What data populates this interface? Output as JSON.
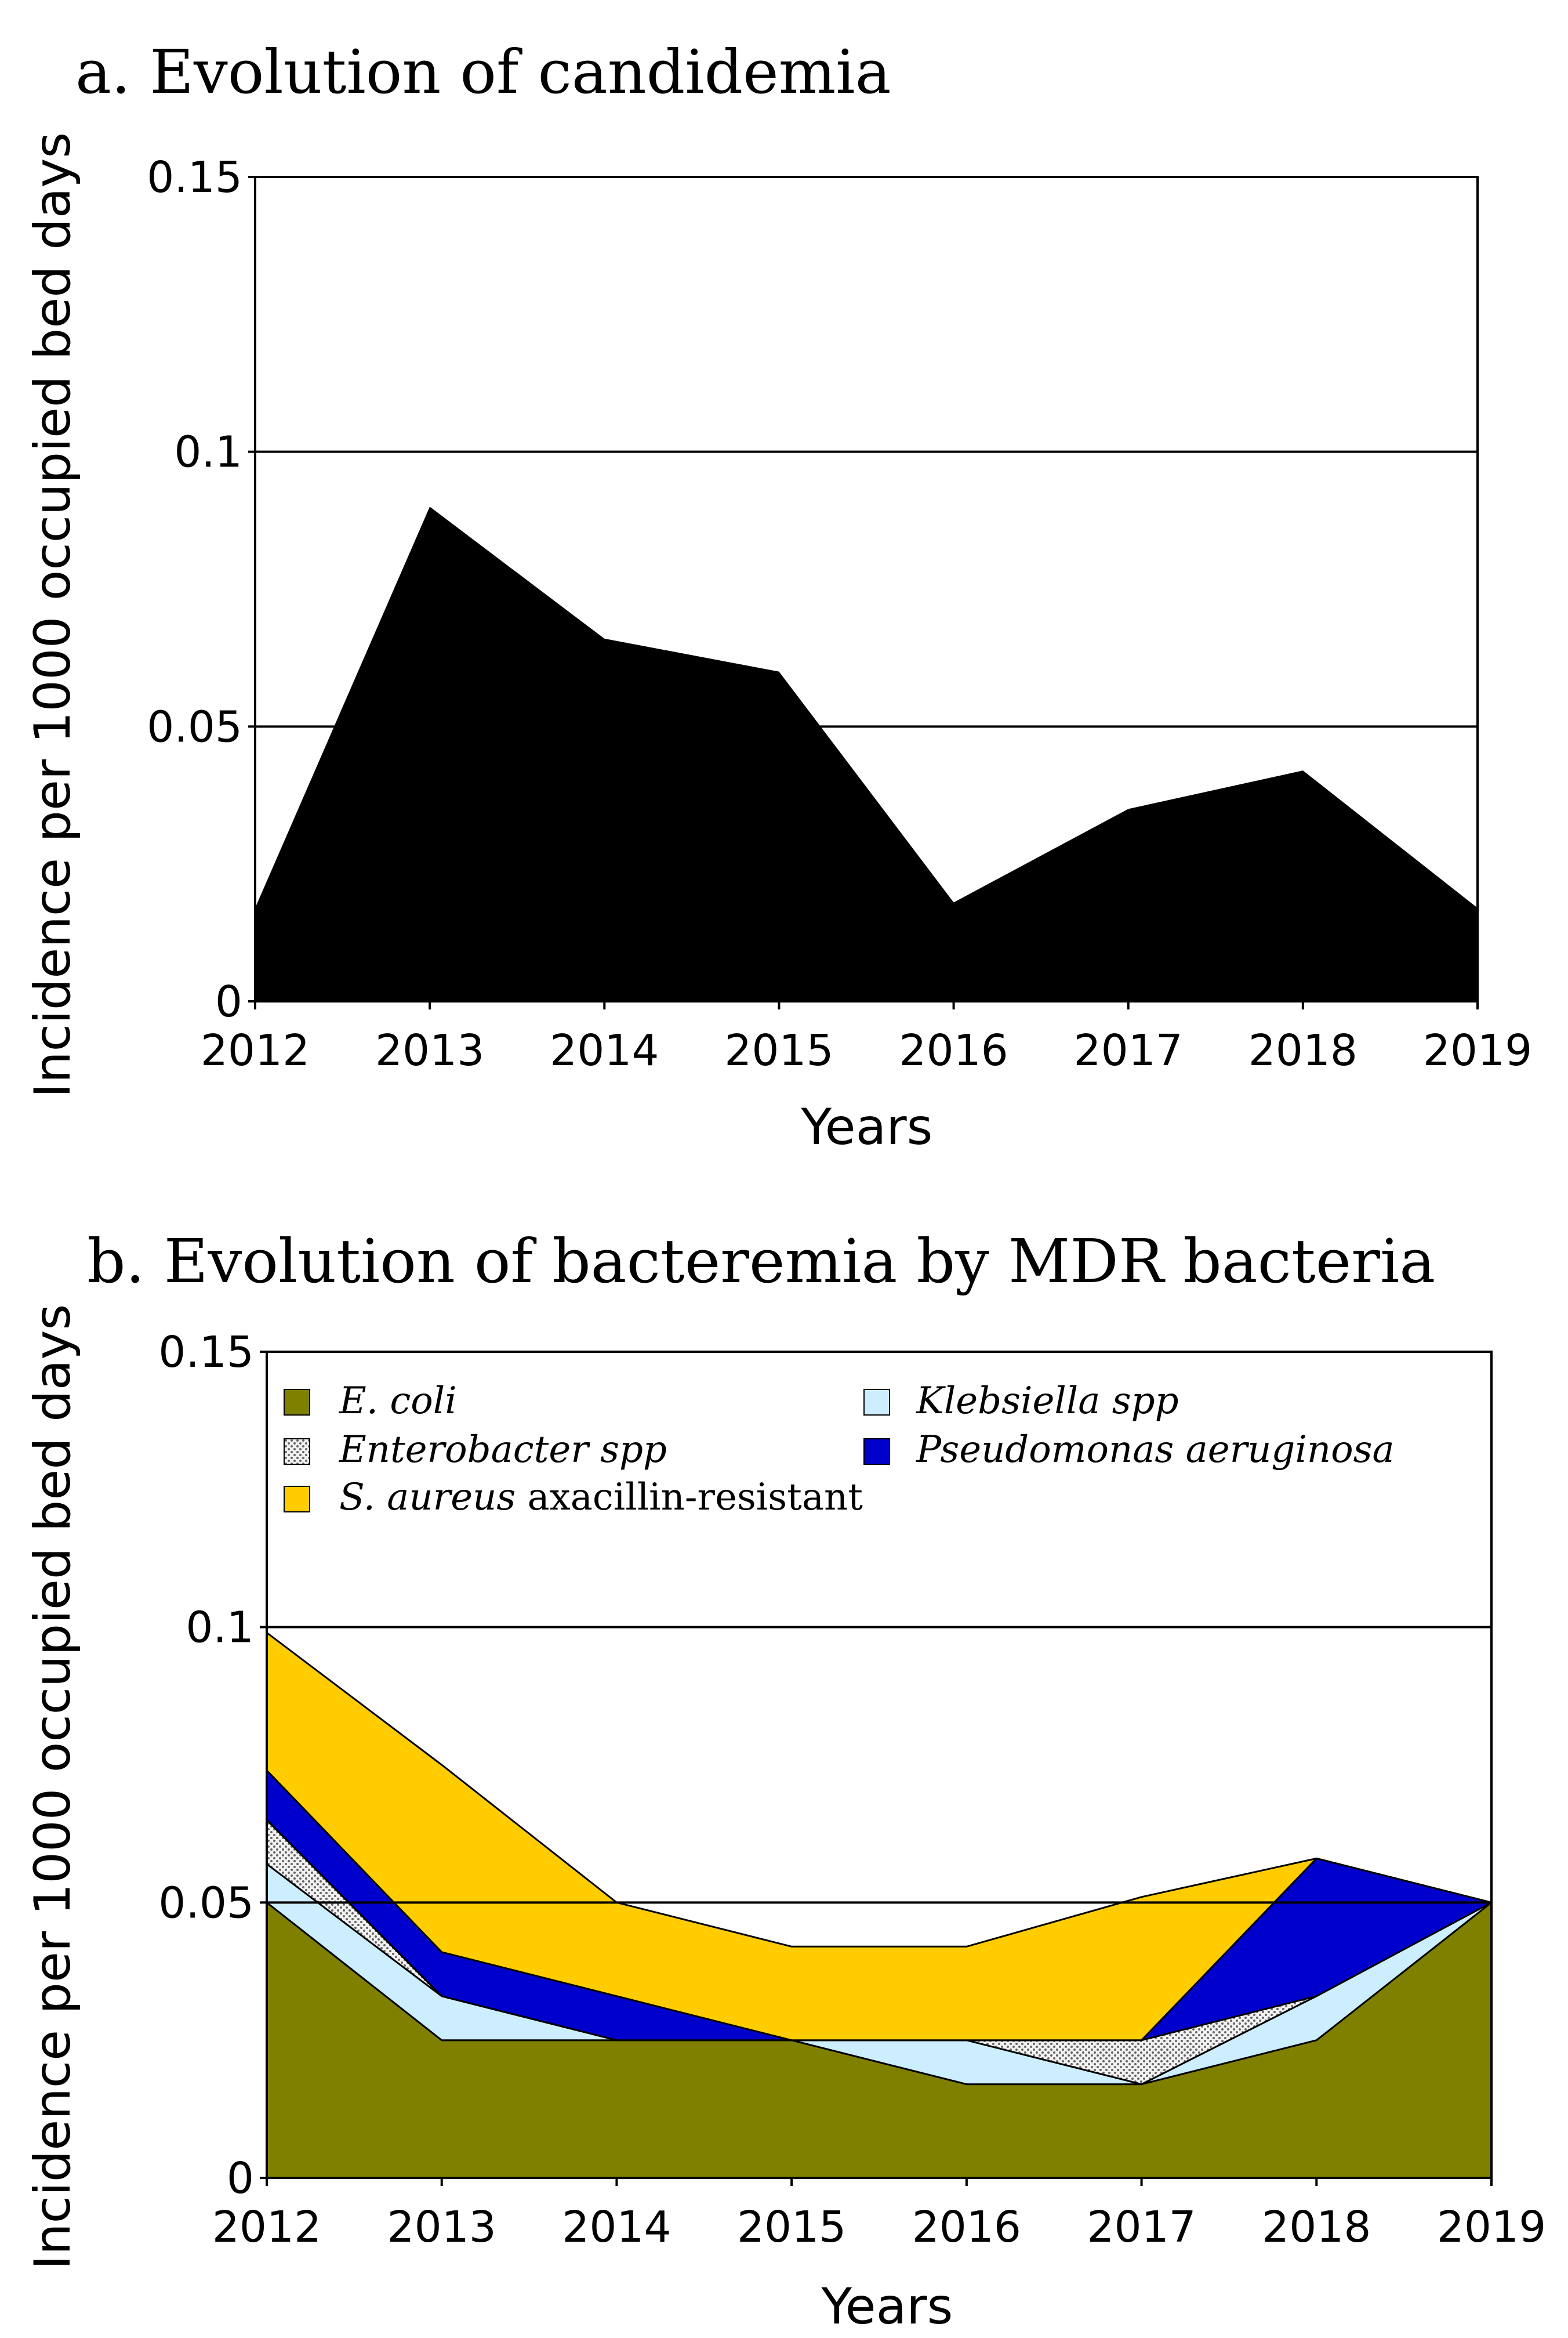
{
  "chart_data": [
    {
      "type": "area",
      "title": "a. Evolution of candidemia",
      "xlabel": "Years",
      "ylabel": "Incidence per 1000 occupied bed days",
      "categories": [
        "2012",
        "2013",
        "2014",
        "2015",
        "2016",
        "2017",
        "2018",
        "2019"
      ],
      "ylim": [
        0,
        0.15
      ],
      "yticks": [
        "0",
        "0.05",
        "0.1",
        "0.15"
      ],
      "series": [
        {
          "name": "Candidemia",
          "color": "#000000",
          "values": [
            0.017,
            0.09,
            0.066,
            0.06,
            0.018,
            0.035,
            0.042,
            0.017
          ]
        }
      ]
    },
    {
      "type": "area",
      "stacked": true,
      "title": "b. Evolution of bacteremia by MDR bacteria",
      "xlabel": "Years",
      "ylabel": "Incidence per 1000 occupied bed days",
      "categories": [
        "2012",
        "2013",
        "2014",
        "2015",
        "2016",
        "2017",
        "2018",
        "2019"
      ],
      "ylim": [
        0,
        0.15
      ],
      "yticks": [
        "0",
        "0.05",
        "0.1",
        "0.15"
      ],
      "legend_position": "top",
      "series": [
        {
          "name": "E. coli",
          "color": "#808000",
          "values": [
            0.05,
            0.025,
            0.025,
            0.025,
            0.017,
            0.017,
            0.025,
            0.05
          ]
        },
        {
          "name": "Klebsiella spp",
          "color": "#cceeff",
          "values": [
            0.007,
            0.008,
            0.0,
            0.0,
            0.008,
            0.0,
            0.008,
            0.0
          ]
        },
        {
          "name": "Enterobacter spp",
          "color": "#e6e6e6",
          "pattern": "dots",
          "values": [
            0.008,
            0.0,
            0.0,
            0.0,
            0.0,
            0.008,
            0.0,
            0.0
          ]
        },
        {
          "name": "Pseudomonas aeruginosa",
          "color": "#0000cc",
          "values": [
            0.009,
            0.008,
            0.008,
            0.0,
            0.0,
            0.0,
            0.025,
            0.0
          ]
        },
        {
          "name": "S. aureus axacillin-resistant",
          "color": "#ffcc00",
          "values": [
            0.025,
            0.034,
            0.017,
            0.017,
            0.017,
            0.026,
            0.0,
            0.0
          ]
        }
      ],
      "legend": {
        "entries": [
          {
            "italic": "E. coli",
            "rest": "",
            "key": "ecoli"
          },
          {
            "italic": "Klebsiella spp",
            "rest": "",
            "key": "klebsiella"
          },
          {
            "italic": "Enterobacter spp",
            "rest": "",
            "key": "enterobacter"
          },
          {
            "italic": "Pseudomonas aeruginosa",
            "rest": "",
            "key": "pseudomonas"
          },
          {
            "italic": "S. aureus",
            "rest": " axacillin-resistant",
            "key": "saureus"
          }
        ]
      }
    }
  ]
}
